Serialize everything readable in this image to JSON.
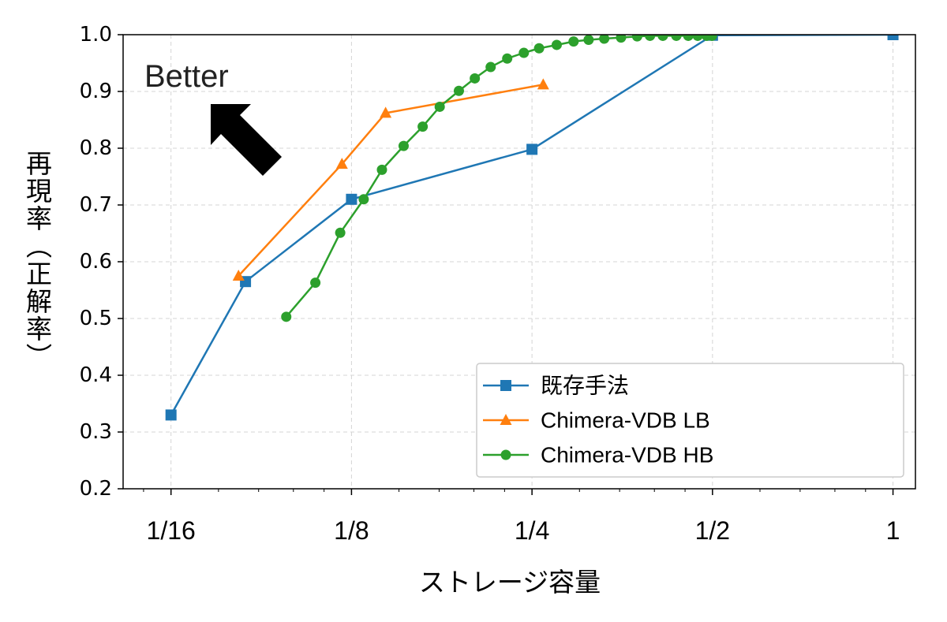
{
  "chart_data": {
    "type": "line",
    "title": "",
    "xlabel": "ストレージ容量",
    "ylabel": "再現率（正解率）",
    "x_scale": "log2",
    "xlim": [
      0.052,
      1.09
    ],
    "ylim": [
      0.2,
      1.0
    ],
    "x_ticks": [
      0.0625,
      0.125,
      0.25,
      0.5,
      1
    ],
    "x_tick_labels": [
      "1/16",
      "1/8",
      "1/4",
      "1/2",
      "1"
    ],
    "y_ticks": [
      0.2,
      0.3,
      0.4,
      0.5,
      0.6,
      0.7,
      0.8,
      0.9,
      1.0
    ],
    "y_tick_labels": [
      "0.2",
      "0.3",
      "0.4",
      "0.5",
      "0.6",
      "0.7",
      "0.8",
      "0.9",
      "1.0"
    ],
    "grid": true,
    "legend_position": "bottom-right",
    "annotation": {
      "text": "Better"
    },
    "series": [
      {
        "name": "既存手法",
        "color": "#1f77b4",
        "marker": "square",
        "x": [
          0.0625,
          0.0832,
          0.125,
          0.25,
          0.5,
          1.0
        ],
        "y": [
          0.33,
          0.565,
          0.71,
          0.798,
          0.999,
          1.0
        ]
      },
      {
        "name": "Chimera-VDB LB",
        "color": "#ff7f0e",
        "marker": "triangle",
        "x": [
          0.081,
          0.1205,
          0.1425,
          0.261
        ],
        "y": [
          0.575,
          0.772,
          0.862,
          0.912
        ]
      },
      {
        "name": "Chimera-VDB HB",
        "color": "#2ca02c",
        "marker": "circle",
        "x": [
          0.0973,
          0.1088,
          0.1197,
          0.131,
          0.1405,
          0.1527,
          0.1643,
          0.1754,
          0.1888,
          0.2007,
          0.2133,
          0.2273,
          0.2423,
          0.2569,
          0.2749,
          0.2933,
          0.3107,
          0.3299,
          0.3519,
          0.3744,
          0.3933,
          0.4132,
          0.4352,
          0.4556,
          0.4724,
          0.4889,
          0.499
        ],
        "y": [
          0.503,
          0.563,
          0.651,
          0.71,
          0.762,
          0.804,
          0.838,
          0.873,
          0.901,
          0.923,
          0.943,
          0.958,
          0.968,
          0.976,
          0.982,
          0.988,
          0.991,
          0.993,
          0.995,
          0.997,
          0.998,
          0.998,
          0.998,
          0.998,
          0.998,
          0.998,
          0.998
        ]
      }
    ]
  }
}
